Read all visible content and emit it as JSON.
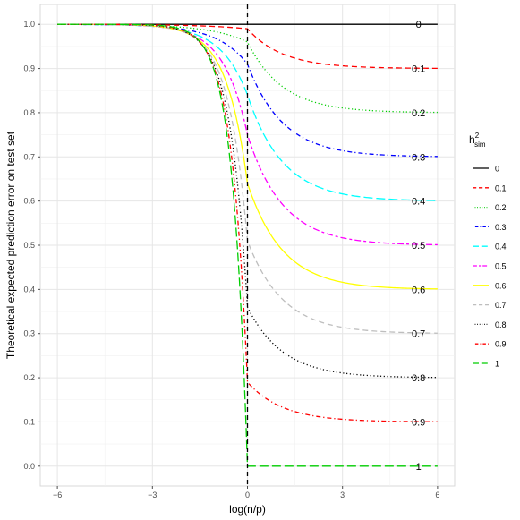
{
  "chart_data": {
    "type": "line",
    "title": "",
    "xlabel": "log(n/p)",
    "ylabel": "Theoretical expected prediction error on test set",
    "xlim": [
      -6,
      6
    ],
    "ylim": [
      0,
      1
    ],
    "xticks": [
      -6,
      -3,
      0,
      3,
      6
    ],
    "xtick_labels": [
      "−6",
      "−3",
      "0",
      "3",
      "6"
    ],
    "yticks": [
      0,
      0.1,
      0.2,
      0.3,
      0.4,
      0.5,
      0.6,
      0.7,
      0.8,
      0.9,
      1.0
    ],
    "ytick_labels": [
      "0.0",
      "0.1",
      "0.2",
      "0.3",
      "0.4",
      "0.5",
      "0.6",
      "0.7",
      "0.8",
      "0.9",
      "1.0"
    ],
    "grid": true,
    "vline": {
      "x": 0,
      "style": "dashed",
      "color": "#000000"
    },
    "legend": {
      "title_base": "h",
      "title_sup": "2",
      "title_sub": "sim",
      "placement": "right"
    },
    "series": [
      {
        "name": "0",
        "h2": 0.0,
        "color": "#000000",
        "dash": "solid",
        "end_label": "0"
      },
      {
        "name": "0.1",
        "h2": 0.1,
        "color": "#ff0000",
        "dash": "dashed",
        "end_label": "0.1"
      },
      {
        "name": "0.2",
        "h2": 0.2,
        "color": "#00cd00",
        "dash": "dotted",
        "end_label": "0.2"
      },
      {
        "name": "0.3",
        "h2": 0.3,
        "color": "#0000ff",
        "dash": "dotdash",
        "end_label": "0.3"
      },
      {
        "name": "0.4",
        "h2": 0.4,
        "color": "#00ffff",
        "dash": "longdash",
        "end_label": "0.4"
      },
      {
        "name": "0.5",
        "h2": 0.5,
        "color": "#ff00ff",
        "dash": "twodash",
        "end_label": "0.5"
      },
      {
        "name": "0.6",
        "h2": 0.6,
        "color": "#ffff00",
        "dash": "solid",
        "end_label": "0.6"
      },
      {
        "name": "0.7",
        "h2": 0.7,
        "color": "#bebebe",
        "dash": "dashed",
        "end_label": "0.7"
      },
      {
        "name": "0.8",
        "h2": 0.8,
        "color": "#000000",
        "dash": "dotted",
        "end_label": "0.8"
      },
      {
        "name": "0.9",
        "h2": 0.9,
        "color": "#ff0000",
        "dash": "dotdash",
        "end_label": "0.9"
      },
      {
        "name": "1",
        "h2": 1.0,
        "color": "#00cd00",
        "dash": "longdash",
        "end_label": "1"
      }
    ]
  }
}
